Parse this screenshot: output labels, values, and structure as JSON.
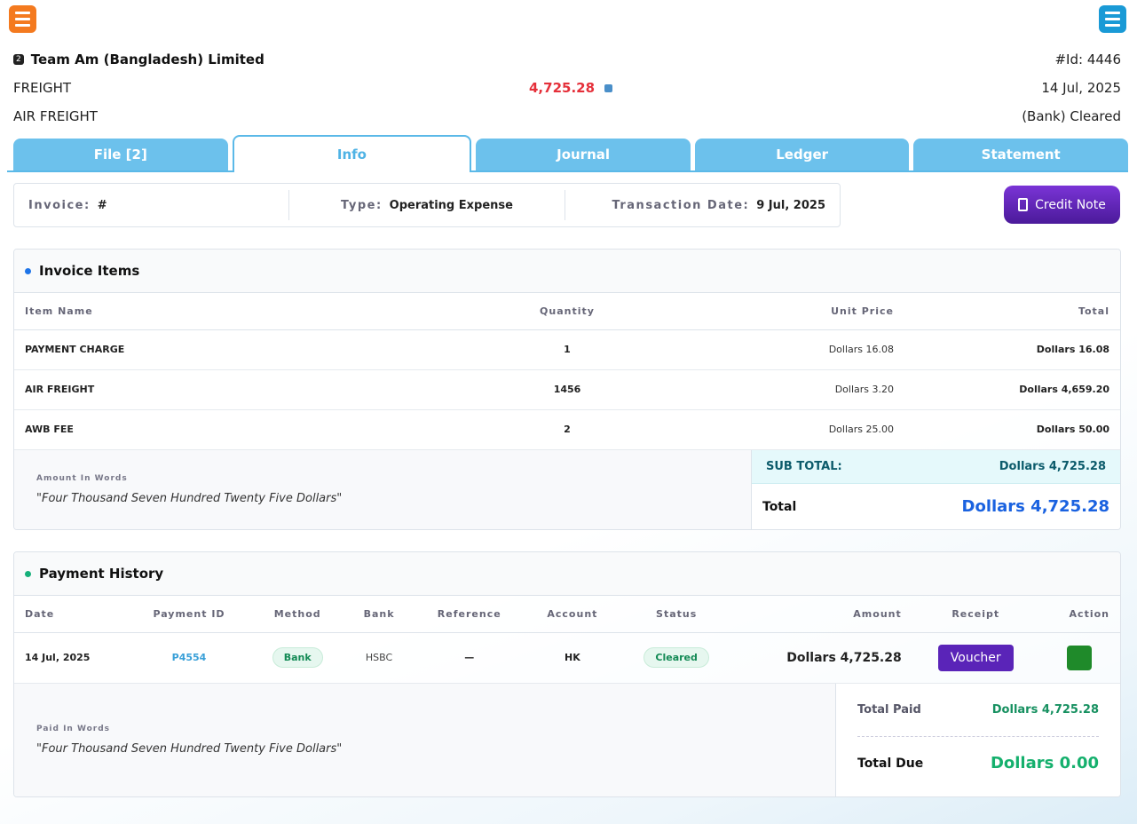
{
  "header": {
    "badge": "2",
    "company": "Team Am (Bangladesh) Limited",
    "id": "#Id: 4446",
    "category": "FREIGHT",
    "amount": "4,725.28",
    "date": "14 Jul, 2025",
    "subcategory": "AIR FREIGHT",
    "status": "(Bank) Cleared"
  },
  "tabs": [
    "File [2]",
    "Info",
    "Journal",
    "Ledger",
    "Statement"
  ],
  "summary": {
    "invoice_label": "Invoice:",
    "invoice_value": "#",
    "type_label": "Type:",
    "type_value": "Operating Expense",
    "date_label": "Transaction Date:",
    "date_value": "9 Jul, 2025"
  },
  "credit_note": "Credit Note",
  "invoice_items": {
    "title": "Invoice Items",
    "headers": [
      "Item Name",
      "Quantity",
      "Unit Price",
      "Total"
    ],
    "rows": [
      [
        "PAYMENT CHARGE",
        "1",
        "Dollars 16.08",
        "Dollars 16.08"
      ],
      [
        "AIR FREIGHT",
        "1456",
        "Dollars 3.20",
        "Dollars 4,659.20"
      ],
      [
        "AWB FEE",
        "2",
        "Dollars 25.00",
        "Dollars 50.00"
      ]
    ],
    "words_label": "Amount In Words",
    "words": "\"Four Thousand Seven Hundred Twenty Five Dollars\"",
    "subtotal_label": "SUB TOTAL:",
    "subtotal": "Dollars 4,725.28",
    "total_label": "Total",
    "total": "Dollars 4,725.28"
  },
  "payment_history": {
    "title": "Payment History",
    "headers": [
      "Date",
      "Payment ID",
      "Method",
      "Bank",
      "Reference",
      "Account",
      "Status",
      "Amount",
      "Receipt",
      "Action"
    ],
    "rows": [
      [
        "14 Jul, 2025",
        "P4554",
        "Bank",
        "HSBC",
        "—",
        "HK",
        "Cleared",
        "Dollars 4,725.28",
        "Voucher"
      ]
    ],
    "words_label": "Paid In Words",
    "words": "\"Four Thousand Seven Hundred Twenty Five Dollars\"",
    "paid_label": "Total Paid",
    "paid": "Dollars 4,725.28",
    "due_label": "Total Due",
    "due": "Dollars 0.00"
  }
}
